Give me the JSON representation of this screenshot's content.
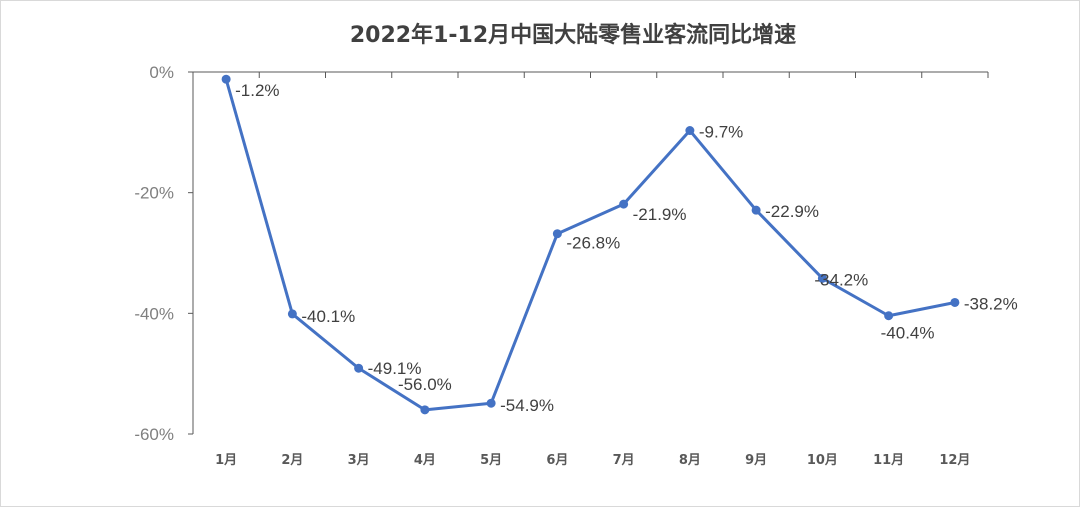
{
  "chart_data": {
    "type": "line",
    "title": "2022年1-12月中国大陆零售业客流同比增速",
    "categories": [
      "1月",
      "2月",
      "3月",
      "4月",
      "5月",
      "6月",
      "7月",
      "8月",
      "9月",
      "10月",
      "11月",
      "12月"
    ],
    "values": [
      -1.2,
      -40.1,
      -49.1,
      -56.0,
      -54.9,
      -26.8,
      -21.9,
      -9.7,
      -22.9,
      -34.2,
      -40.4,
      -38.2
    ],
    "data_labels": [
      "-1.2%",
      "-40.1%",
      "-49.1%",
      "-56.0%",
      "-54.9%",
      "-26.8%",
      "-21.9%",
      "-9.7%",
      "-22.9%",
      "-34.2%",
      "-40.4%",
      "-38.2%"
    ],
    "ylim": [
      -60,
      0
    ],
    "yticks": [
      0,
      -20,
      -40,
      -60
    ],
    "ytick_labels": [
      "0%",
      "-20%",
      "-40%",
      "-60%"
    ],
    "xlabel": "",
    "ylabel": "",
    "x_axis_position": "top",
    "grid": false,
    "legend": "none",
    "colors": {
      "line": "#4472c4",
      "axis": "#595959",
      "title": "#404040"
    }
  }
}
